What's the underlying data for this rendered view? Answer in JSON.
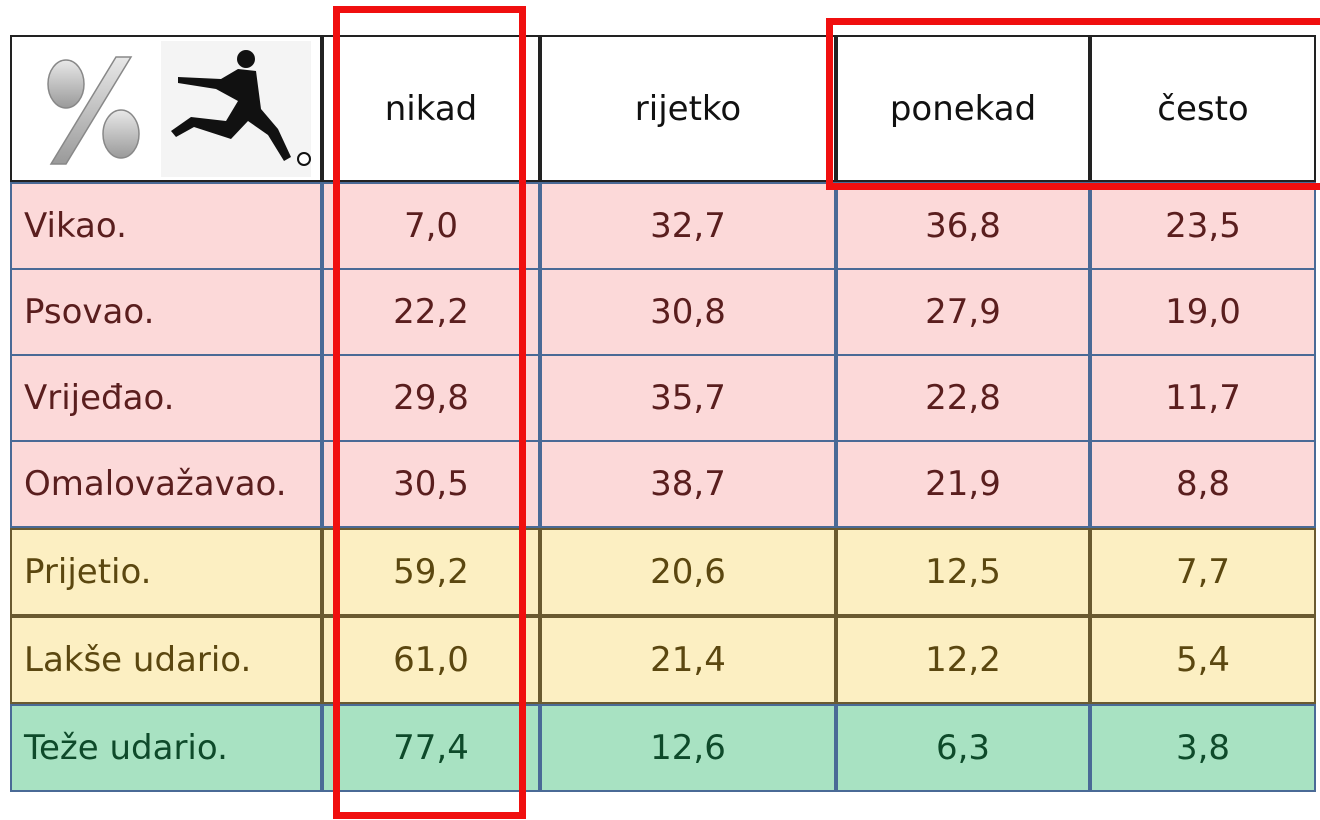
{
  "table": {
    "header": [
      "nikad",
      "rijetko",
      "ponekad",
      "često"
    ],
    "rows": [
      {
        "label": "Vikao.",
        "values": [
          "7,0",
          "32,7",
          "36,8",
          "23,5"
        ]
      },
      {
        "label": "Psovao.",
        "values": [
          "22,2",
          "30,8",
          "27,9",
          "19,0"
        ]
      },
      {
        "label": "Vrijeđao.",
        "values": [
          "29,8",
          "35,7",
          "22,8",
          "11,7"
        ]
      },
      {
        "label": "Omalovažavao.",
        "values": [
          "30,5",
          "38,7",
          "21,9",
          "8,8"
        ]
      },
      {
        "label": "Prijetio.",
        "values": [
          "59,2",
          "20,6",
          "12,5",
          "7,7"
        ]
      },
      {
        "label": "Lakše udario.",
        "values": [
          "61,0",
          "21,4",
          "12,2",
          "5,4"
        ]
      },
      {
        "label": "Teže udario.",
        "values": [
          "77,4",
          "12,6",
          "6,3",
          "3,8"
        ]
      }
    ]
  }
}
